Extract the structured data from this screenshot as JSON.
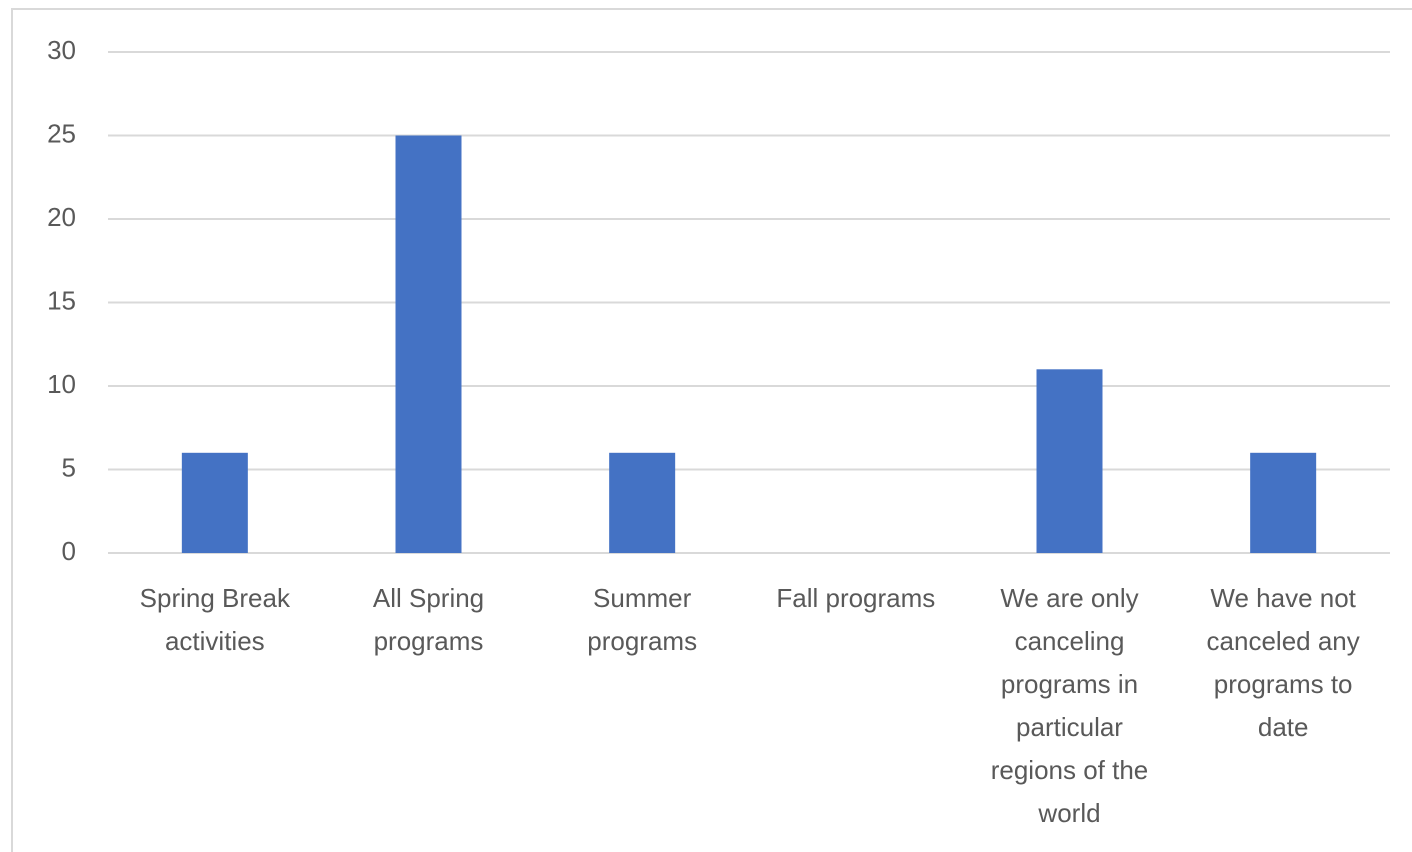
{
  "chart_data": {
    "type": "bar",
    "categories": [
      "Spring Break activities",
      "All Spring programs",
      "Summer programs",
      "Fall programs",
      "We are only canceling programs in particular regions of the world",
      "We have not canceled any programs to date"
    ],
    "values": [
      6,
      25,
      6,
      0,
      11,
      6
    ],
    "color": "#4472c4",
    "ylim": [
      0,
      30
    ],
    "yticks": [
      0,
      5,
      10,
      15,
      20,
      25,
      30
    ],
    "grid": true
  }
}
